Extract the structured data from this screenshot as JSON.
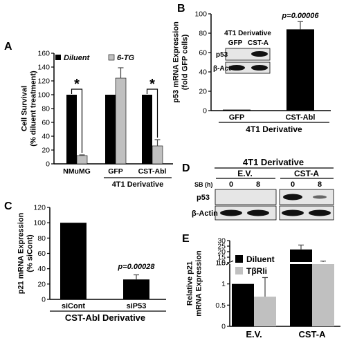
{
  "panels": {
    "A": "A",
    "B": "B",
    "C": "C",
    "D": "D",
    "E": "E"
  },
  "colors": {
    "black": "#000000",
    "gray": "#c0c0c0",
    "blot_bg": "#e6e6e6",
    "band": "#111111"
  },
  "blot_B": {
    "title": "4T1 Derivative",
    "lanes": [
      "GFP",
      "CST-A"
    ],
    "rows": [
      "p53",
      "β-Act"
    ]
  },
  "blot_D": {
    "title": "4T1 Derivative",
    "groups": [
      "E.V.",
      "CST-A"
    ],
    "sb_label": "SB (h)",
    "times": [
      "0",
      "8",
      "0",
      "8"
    ],
    "rows": [
      "p53",
      "β-Actin"
    ]
  },
  "chart_data": [
    {
      "panel": "A",
      "type": "bar",
      "categories": [
        "NMuMG",
        "GFP",
        "CST-Abl"
      ],
      "group_label": "4T1 Derivative",
      "series": [
        {
          "name": "Diluent",
          "values": [
            100,
            100,
            100
          ],
          "errors": [
            0,
            0,
            0
          ]
        },
        {
          "name": "6-TG",
          "values": [
            12,
            124,
            26
          ],
          "errors": [
            1,
            15,
            9
          ]
        }
      ],
      "ylabel": "Cell Survival\n(% diluent treatment)",
      "yticks": [
        0,
        20,
        40,
        60,
        80,
        100,
        120,
        140,
        160
      ],
      "ylim": [
        0,
        160
      ],
      "significance": [
        "*",
        "",
        "*"
      ]
    },
    {
      "panel": "B",
      "type": "bar",
      "categories": [
        "GFP",
        "CST-Abl"
      ],
      "group_label": "4T1 Derivative",
      "values": [
        1,
        84
      ],
      "errors": [
        0,
        8
      ],
      "ylabel": "p53 mRNA Expression\n(fold GFP cells)",
      "yticks": [
        0,
        20,
        40,
        60,
        80,
        100
      ],
      "ylim": [
        0,
        100
      ],
      "annotation": "p=0.00006"
    },
    {
      "panel": "C",
      "type": "bar",
      "categories": [
        "siCont",
        "siP53"
      ],
      "group_label": "CST-Abl Derivative",
      "values": [
        100,
        26
      ],
      "errors": [
        0,
        6
      ],
      "ylabel": "p21 mRNA Expression\n(% siCont)",
      "yticks": [
        0,
        20,
        40,
        60,
        80,
        100,
        120
      ],
      "ylim": [
        0,
        120
      ],
      "annotation": "p=0.00028"
    },
    {
      "panel": "E",
      "type": "bar",
      "categories": [
        "E.V.",
        "CST-A"
      ],
      "series": [
        {
          "name": "Diluent",
          "values": [
            1,
            22
          ],
          "errors": [
            0,
            4
          ]
        },
        {
          "name": "TβRIi",
          "values": [
            0.7,
            10
          ],
          "errors": [
            0.45,
            1.5
          ]
        }
      ],
      "ylabel": "Relative p21\nmRNA Expression",
      "yticks_lower": [
        0,
        0.5,
        1,
        1.5
      ],
      "yticks_upper": [
        10,
        15,
        20,
        25,
        30
      ],
      "ylim_lower": [
        0,
        1.5
      ],
      "ylim_upper": [
        10,
        30
      ],
      "axis_break": true
    }
  ]
}
